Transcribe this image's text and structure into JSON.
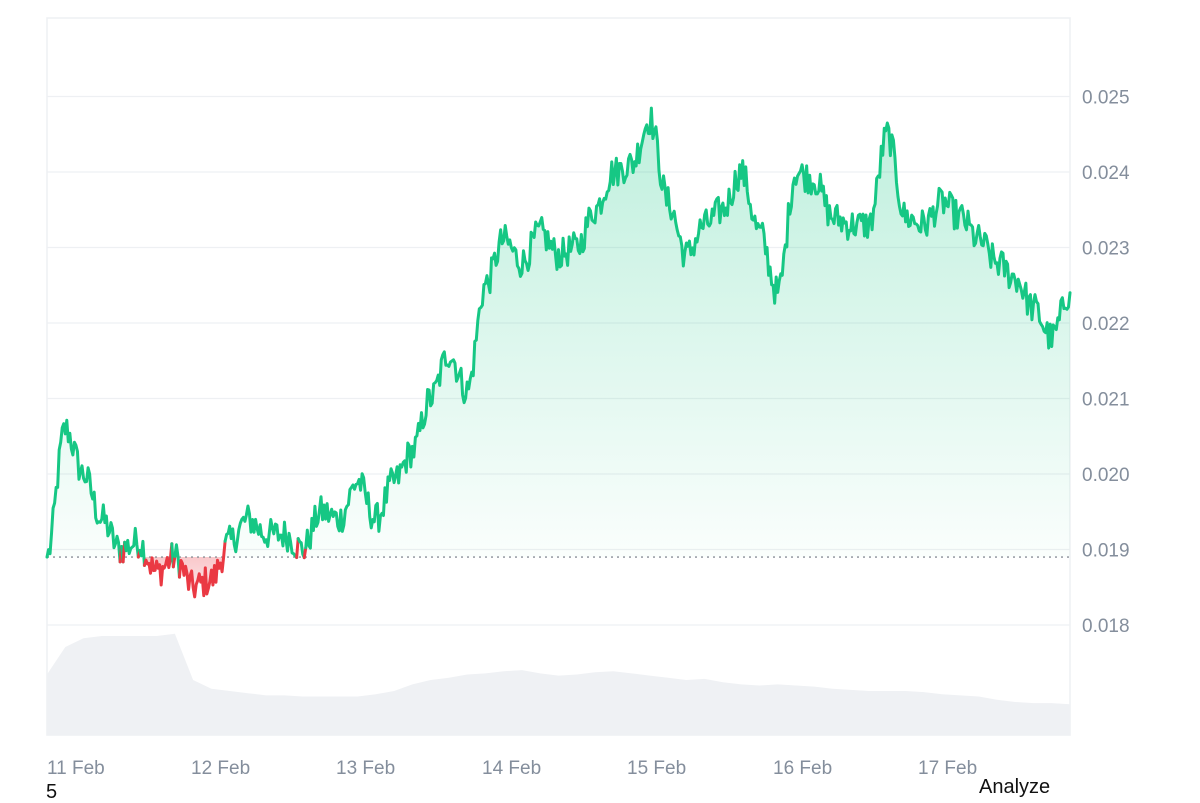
{
  "chart_data": {
    "type": "area",
    "x_ticks": [
      "11 Feb",
      "12 Feb",
      "13 Feb",
      "14 Feb",
      "15 Feb",
      "16 Feb",
      "17 Feb"
    ],
    "y_ticks": [
      "0.025",
      "0.024",
      "0.023",
      "0.022",
      "0.021",
      "0.020",
      "0.019",
      "0.018"
    ],
    "ylim": [
      0.0175,
      0.026
    ],
    "baseline": 0.0189,
    "grid": true,
    "colors": {
      "up_line": "#16c784",
      "down_line": "#ea3943",
      "up_fill": "#16c784",
      "down_fill": "#ea3943",
      "volume": "#eff1f4",
      "grid": "#eef0f3",
      "tick_text": "#848e9c"
    },
    "series": [
      {
        "x": [
          "11 Feb 00:00",
          "11 Feb 03:00",
          "11 Feb 06:00",
          "11 Feb 09:00",
          "11 Feb 12:00",
          "11 Feb 15:00",
          "11 Feb 18:00",
          "11 Feb 21:00",
          "12 Feb 00:00",
          "12 Feb 03:00",
          "12 Feb 06:00",
          "12 Feb 09:00",
          "12 Feb 12:00",
          "12 Feb 15:00",
          "12 Feb 18:00",
          "12 Feb 21:00",
          "13 Feb 00:00",
          "13 Feb 03:00",
          "13 Feb 06:00",
          "13 Feb 09:00",
          "13 Feb 12:00",
          "13 Feb 15:00",
          "13 Feb 18:00",
          "13 Feb 21:00",
          "14 Feb 00:00",
          "14 Feb 03:00",
          "14 Feb 06:00",
          "14 Feb 09:00",
          "14 Feb 12:00",
          "14 Feb 15:00",
          "14 Feb 18:00",
          "14 Feb 21:00",
          "15 Feb 00:00",
          "15 Feb 03:00",
          "15 Feb 06:00",
          "15 Feb 09:00",
          "15 Feb 12:00",
          "15 Feb 15:00",
          "15 Feb 18:00",
          "15 Feb 21:00",
          "16 Feb 00:00",
          "16 Feb 03:00",
          "16 Feb 06:00",
          "16 Feb 09:00",
          "16 Feb 12:00",
          "16 Feb 15:00",
          "16 Feb 18:00",
          "16 Feb 21:00",
          "17 Feb 00:00",
          "17 Feb 03:00",
          "17 Feb 06:00",
          "17 Feb 09:00",
          "17 Feb 12:00",
          "17 Feb 15:00",
          "17 Feb 18:00",
          "17 Feb 21:00",
          "18 Feb 00:00"
        ],
        "y": [
          0.0189,
          0.0206,
          0.02,
          0.0194,
          0.019,
          0.0191,
          0.0187,
          0.0189,
          0.0185,
          0.0186,
          0.0191,
          0.0194,
          0.0192,
          0.0192,
          0.019,
          0.0195,
          0.0194,
          0.0199,
          0.0194,
          0.0199,
          0.0203,
          0.021,
          0.0216,
          0.0211,
          0.0225,
          0.0231,
          0.0228,
          0.0232,
          0.0229,
          0.023,
          0.0235,
          0.024,
          0.0241,
          0.0247,
          0.0236,
          0.0229,
          0.0233,
          0.0235,
          0.024,
          0.0232,
          0.0224,
          0.024,
          0.0239,
          0.0234,
          0.0233,
          0.0233,
          0.0245,
          0.0234,
          0.0233,
          0.0236,
          0.0234,
          0.0231,
          0.0228,
          0.0226,
          0.0222,
          0.0218,
          0.0224
        ]
      }
    ],
    "volume": [
      0.55,
      0.8,
      0.88,
      0.9,
      0.9,
      0.9,
      0.9,
      0.92,
      0.5,
      0.42,
      0.4,
      0.38,
      0.36,
      0.36,
      0.35,
      0.35,
      0.35,
      0.35,
      0.37,
      0.4,
      0.46,
      0.5,
      0.52,
      0.55,
      0.56,
      0.58,
      0.59,
      0.56,
      0.54,
      0.55,
      0.57,
      0.58,
      0.56,
      0.54,
      0.52,
      0.5,
      0.51,
      0.48,
      0.46,
      0.45,
      0.46,
      0.45,
      0.44,
      0.42,
      0.41,
      0.4,
      0.4,
      0.4,
      0.39,
      0.37,
      0.36,
      0.35,
      0.32,
      0.3,
      0.29,
      0.29,
      0.28
    ]
  },
  "footer": {
    "analyze_label": "Analyze",
    "page_number": "5"
  }
}
